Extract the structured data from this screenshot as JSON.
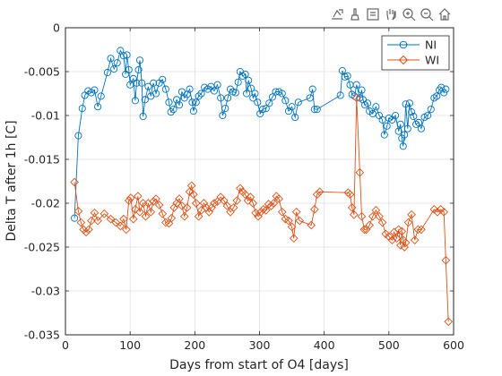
{
  "toolbar": {
    "icons": [
      "export-icon",
      "brush-icon",
      "data-tips-icon",
      "pan-icon",
      "zoom-in-icon",
      "zoom-out-icon",
      "home-icon"
    ]
  },
  "chart_data": {
    "type": "line",
    "xlabel": "Days from start of O4 [days]",
    "ylabel": "Delta T after 1h [C]",
    "xlim": [
      0,
      600
    ],
    "ylim": [
      -0.035,
      0
    ],
    "xticks": [
      0,
      100,
      200,
      300,
      400,
      500,
      600
    ],
    "yticks": [
      0,
      -0.005,
      -0.01,
      -0.015,
      -0.02,
      -0.025,
      -0.03,
      -0.035
    ],
    "xtick_labels": [
      "0",
      "100",
      "200",
      "300",
      "400",
      "500",
      "600"
    ],
    "ytick_labels": [
      "0",
      "-0.005",
      "-0.01",
      "-0.015",
      "-0.02",
      "-0.025",
      "-0.03",
      "-0.035"
    ],
    "grid": true,
    "legend_position": "top-right",
    "series": [
      {
        "name": "NI",
        "color": "#0072BD",
        "marker": "circle",
        "points": [
          [
            14,
            -0.0217
          ],
          [
            20,
            -0.0123
          ],
          [
            26,
            -0.0092
          ],
          [
            30,
            -0.0077
          ],
          [
            35,
            -0.0072
          ],
          [
            40,
            -0.0074
          ],
          [
            45,
            -0.0071
          ],
          [
            50,
            -0.009
          ],
          [
            55,
            -0.0078
          ],
          [
            65,
            -0.0051
          ],
          [
            70,
            -0.0035
          ],
          [
            75,
            -0.0047
          ],
          [
            80,
            -0.004
          ],
          [
            85,
            -0.0026
          ],
          [
            90,
            -0.0032
          ],
          [
            93,
            -0.0053
          ],
          [
            95,
            -0.0031
          ],
          [
            98,
            -0.0048
          ],
          [
            100,
            -0.0065
          ],
          [
            105,
            -0.0058
          ],
          [
            108,
            -0.0083
          ],
          [
            110,
            -0.0063
          ],
          [
            113,
            -0.0048
          ],
          [
            115,
            -0.0037
          ],
          [
            118,
            -0.0063
          ],
          [
            120,
            -0.0101
          ],
          [
            123,
            -0.0082
          ],
          [
            128,
            -0.0067
          ],
          [
            132,
            -0.0078
          ],
          [
            136,
            -0.0063
          ],
          [
            140,
            -0.0075
          ],
          [
            145,
            -0.0063
          ],
          [
            150,
            -0.0059
          ],
          [
            155,
            -0.007
          ],
          [
            160,
            -0.0085
          ],
          [
            163,
            -0.0096
          ],
          [
            167,
            -0.0093
          ],
          [
            172,
            -0.0082
          ],
          [
            176,
            -0.0088
          ],
          [
            180,
            -0.0073
          ],
          [
            184,
            -0.008
          ],
          [
            188,
            -0.0076
          ],
          [
            192,
            -0.007
          ],
          [
            196,
            -0.0085
          ],
          [
            198,
            -0.0095
          ],
          [
            202,
            -0.0085
          ],
          [
            206,
            -0.0078
          ],
          [
            210,
            -0.0075
          ],
          [
            215,
            -0.0068
          ],
          [
            220,
            -0.007
          ],
          [
            225,
            -0.0067
          ],
          [
            230,
            -0.0072
          ],
          [
            235,
            -0.0065
          ],
          [
            240,
            -0.008
          ],
          [
            243,
            -0.01
          ],
          [
            247,
            -0.0092
          ],
          [
            251,
            -0.008
          ],
          [
            255,
            -0.007
          ],
          [
            259,
            -0.0073
          ],
          [
            263,
            -0.0074
          ],
          [
            267,
            -0.0062
          ],
          [
            270,
            -0.005
          ],
          [
            274,
            -0.0055
          ],
          [
            278,
            -0.0053
          ],
          [
            280,
            -0.0075
          ],
          [
            283,
            -0.006
          ],
          [
            287,
            -0.0069
          ],
          [
            290,
            -0.008
          ],
          [
            293,
            -0.0075
          ],
          [
            297,
            -0.0085
          ],
          [
            301,
            -0.0098
          ],
          [
            305,
            -0.0093
          ],
          [
            310,
            -0.0092
          ],
          [
            315,
            -0.0086
          ],
          [
            320,
            -0.0079
          ],
          [
            325,
            -0.0073
          ],
          [
            330,
            -0.0073
          ],
          [
            335,
            -0.0075
          ],
          [
            340,
            -0.0083
          ],
          [
            345,
            -0.0095
          ],
          [
            350,
            -0.009
          ],
          [
            355,
            -0.0102
          ],
          [
            360,
            -0.0085
          ],
          [
            378,
            -0.008
          ],
          [
            382,
            -0.007
          ],
          [
            385,
            -0.0093
          ],
          [
            389,
            -0.0093
          ],
          [
            425,
            -0.0077
          ],
          [
            428,
            -0.0049
          ],
          [
            432,
            -0.0056
          ],
          [
            436,
            -0.0055
          ],
          [
            440,
            -0.0065
          ],
          [
            443,
            -0.0076
          ],
          [
            447,
            -0.0078
          ],
          [
            450,
            -0.0065
          ],
          [
            455,
            -0.008
          ],
          [
            458,
            -0.0071
          ],
          [
            460,
            -0.0082
          ],
          [
            463,
            -0.0088
          ],
          [
            467,
            -0.0086
          ],
          [
            470,
            -0.0095
          ],
          [
            475,
            -0.0098
          ],
          [
            480,
            -0.009
          ],
          [
            485,
            -0.01
          ],
          [
            490,
            -0.0105
          ],
          [
            493,
            -0.0122
          ],
          [
            497,
            -0.0112
          ],
          [
            500,
            -0.0103
          ],
          [
            505,
            -0.0105
          ],
          [
            510,
            -0.01
          ],
          [
            515,
            -0.0118
          ],
          [
            518,
            -0.011
          ],
          [
            520,
            -0.0126
          ],
          [
            522,
            -0.0135
          ],
          [
            524,
            -0.0122
          ],
          [
            526,
            -0.0087
          ],
          [
            529,
            -0.0115
          ],
          [
            532,
            -0.0086
          ],
          [
            535,
            -0.0096
          ],
          [
            538,
            -0.0101
          ],
          [
            542,
            -0.011
          ],
          [
            546,
            -0.0108
          ],
          [
            550,
            -0.0115
          ],
          [
            555,
            -0.0102
          ],
          [
            560,
            -0.01
          ],
          [
            565,
            -0.0093
          ],
          [
            570,
            -0.008
          ],
          [
            574,
            -0.0078
          ],
          [
            578,
            -0.0071
          ],
          [
            581,
            -0.0068
          ],
          [
            585,
            -0.0074
          ],
          [
            588,
            -0.007
          ]
        ]
      },
      {
        "name": "WI",
        "color": "#D95319",
        "marker": "diamond",
        "points": [
          [
            14,
            -0.0176
          ],
          [
            20,
            -0.0209
          ],
          [
            24,
            -0.0222
          ],
          [
            28,
            -0.023
          ],
          [
            32,
            -0.0233
          ],
          [
            36,
            -0.023
          ],
          [
            40,
            -0.022
          ],
          [
            45,
            -0.0211
          ],
          [
            50,
            -0.022
          ],
          [
            60,
            -0.0212
          ],
          [
            70,
            -0.0218
          ],
          [
            78,
            -0.0222
          ],
          [
            85,
            -0.0226
          ],
          [
            90,
            -0.0218
          ],
          [
            94,
            -0.023
          ],
          [
            98,
            -0.0197
          ],
          [
            101,
            -0.0194
          ],
          [
            105,
            -0.0218
          ],
          [
            108,
            -0.0207
          ],
          [
            112,
            -0.0192
          ],
          [
            115,
            -0.021
          ],
          [
            120,
            -0.02
          ],
          [
            124,
            -0.0215
          ],
          [
            128,
            -0.02
          ],
          [
            132,
            -0.021
          ],
          [
            136,
            -0.0198
          ],
          [
            140,
            -0.0195
          ],
          [
            145,
            -0.0202
          ],
          [
            150,
            -0.0212
          ],
          [
            155,
            -0.0222
          ],
          [
            160,
            -0.0223
          ],
          [
            164,
            -0.0217
          ],
          [
            168,
            -0.0205
          ],
          [
            172,
            -0.02
          ],
          [
            176,
            -0.0195
          ],
          [
            180,
            -0.0203
          ],
          [
            184,
            -0.0215
          ],
          [
            188,
            -0.0205
          ],
          [
            192,
            -0.0187
          ],
          [
            195,
            -0.018
          ],
          [
            198,
            -0.019
          ],
          [
            202,
            -0.02
          ],
          [
            206,
            -0.0215
          ],
          [
            210,
            -0.0208
          ],
          [
            214,
            -0.02
          ],
          [
            218,
            -0.0205
          ],
          [
            222,
            -0.021
          ],
          [
            226,
            -0.0205
          ],
          [
            230,
            -0.02
          ],
          [
            235,
            -0.0198
          ],
          [
            240,
            -0.0193
          ],
          [
            245,
            -0.0197
          ],
          [
            250,
            -0.0203
          ],
          [
            255,
            -0.021
          ],
          [
            260,
            -0.0205
          ],
          [
            265,
            -0.0197
          ],
          [
            270,
            -0.0183
          ],
          [
            274,
            -0.0187
          ],
          [
            278,
            -0.019
          ],
          [
            282,
            -0.0197
          ],
          [
            286,
            -0.0193
          ],
          [
            290,
            -0.02
          ],
          [
            294,
            -0.0211
          ],
          [
            298,
            -0.0215
          ],
          [
            302,
            -0.021
          ],
          [
            306,
            -0.0207
          ],
          [
            310,
            -0.0208
          ],
          [
            314,
            -0.0201
          ],
          [
            318,
            -0.0203
          ],
          [
            322,
            -0.02
          ],
          [
            326,
            -0.0192
          ],
          [
            330,
            -0.0195
          ],
          [
            335,
            -0.021
          ],
          [
            340,
            -0.0218
          ],
          [
            345,
            -0.022
          ],
          [
            350,
            -0.0227
          ],
          [
            353,
            -0.024
          ],
          [
            357,
            -0.021
          ],
          [
            362,
            -0.022
          ],
          [
            380,
            -0.0225
          ],
          [
            385,
            -0.0207
          ],
          [
            389,
            -0.019
          ],
          [
            393,
            -0.0187
          ],
          [
            437,
            -0.0188
          ],
          [
            440,
            -0.019
          ],
          [
            443,
            -0.0205
          ],
          [
            446,
            -0.0213
          ],
          [
            450,
            -0.008
          ],
          [
            455,
            -0.0165
          ],
          [
            458,
            -0.0215
          ],
          [
            462,
            -0.023
          ],
          [
            465,
            -0.023
          ],
          [
            470,
            -0.0225
          ],
          [
            475,
            -0.0215
          ],
          [
            480,
            -0.0208
          ],
          [
            485,
            -0.0215
          ],
          [
            490,
            -0.0222
          ],
          [
            495,
            -0.0235
          ],
          [
            500,
            -0.0238
          ],
          [
            505,
            -0.0242
          ],
          [
            508,
            -0.0233
          ],
          [
            512,
            -0.024
          ],
          [
            515,
            -0.023
          ],
          [
            518,
            -0.0248
          ],
          [
            520,
            -0.0232
          ],
          [
            522,
            -0.0242
          ],
          [
            524,
            -0.025
          ],
          [
            526,
            -0.0245
          ],
          [
            530,
            -0.0222
          ],
          [
            535,
            -0.0213
          ],
          [
            540,
            -0.0242
          ],
          [
            545,
            -0.023
          ],
          [
            550,
            -0.023
          ],
          [
            570,
            -0.0207
          ],
          [
            575,
            -0.021
          ],
          [
            580,
            -0.0207
          ],
          [
            585,
            -0.021
          ],
          [
            588,
            -0.0265
          ],
          [
            592,
            -0.0335
          ]
        ]
      }
    ]
  }
}
